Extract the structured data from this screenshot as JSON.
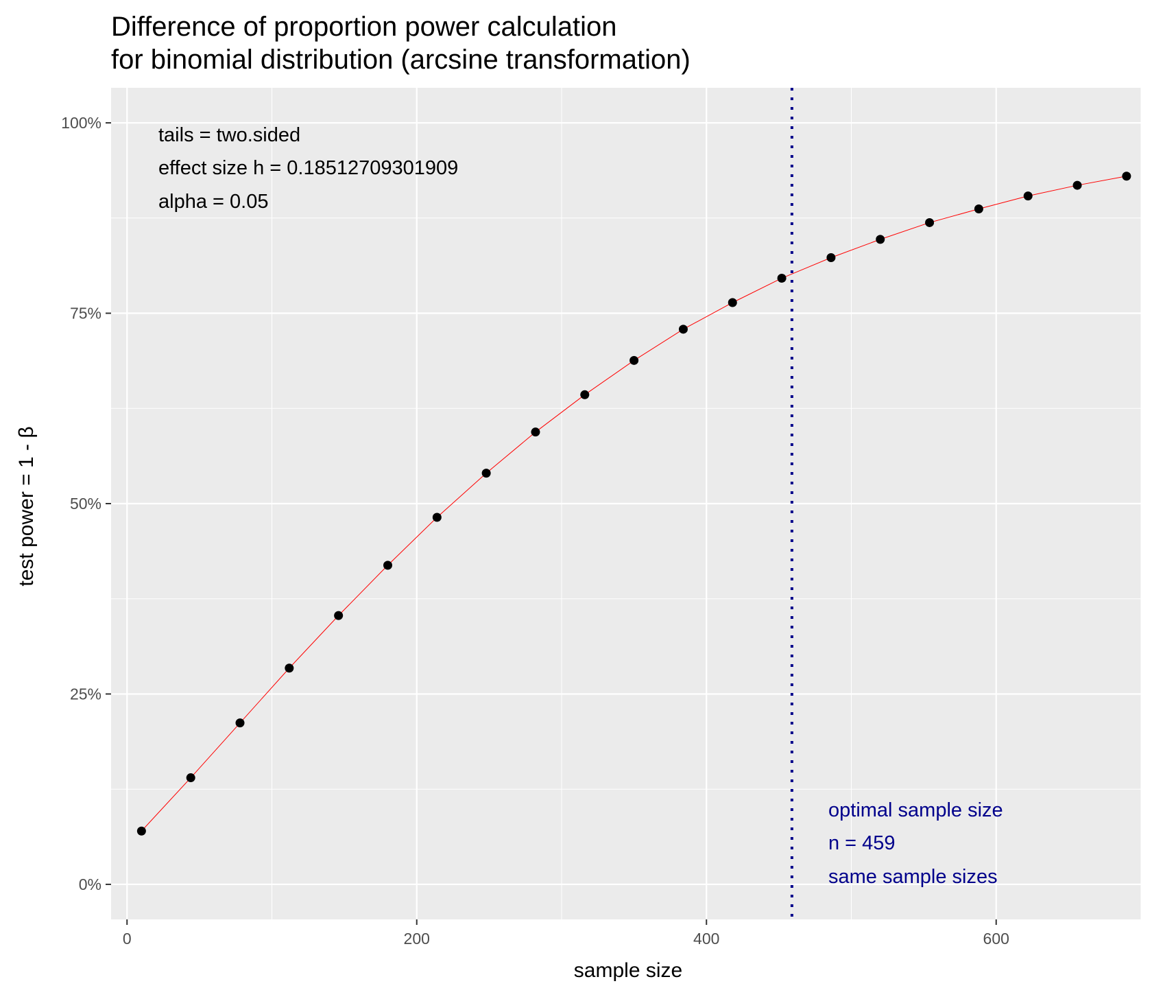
{
  "chart_data": {
    "type": "scatter",
    "title_lines": [
      "Difference of proportion power calculation",
      "for binomial distribution (arcsine transformation)"
    ],
    "xlabel": "sample size",
    "ylabel": "test power = 1 - β",
    "xlim": [
      -11,
      700
    ],
    "ylim": [
      -0.046,
      1.046
    ],
    "x_ticks": [
      0,
      200,
      400,
      600
    ],
    "x_tick_labels": [
      "0",
      "200",
      "400",
      "600"
    ],
    "x_minor_ticks": [
      100,
      300,
      500,
      700
    ],
    "y_ticks": [
      0,
      0.25,
      0.5,
      0.75,
      1.0
    ],
    "y_tick_labels": [
      "0%",
      "25%",
      "50%",
      "75%",
      "100%"
    ],
    "y_minor_ticks": [
      0.125,
      0.375,
      0.625,
      0.875
    ],
    "series": [
      {
        "x": [
          10,
          44,
          78,
          112,
          146,
          180,
          214,
          248,
          282,
          316,
          350,
          384,
          418,
          452,
          486,
          520,
          554,
          588,
          622,
          656,
          690
        ],
        "y": [
          0.07,
          0.14,
          0.212,
          0.284,
          0.353,
          0.419,
          0.482,
          0.54,
          0.594,
          0.643,
          0.688,
          0.729,
          0.764,
          0.796,
          0.823,
          0.847,
          0.869,
          0.887,
          0.904,
          0.918,
          0.93
        ]
      }
    ],
    "line_color": "#ff0000",
    "point_color": "#000000",
    "vline": {
      "x": 459,
      "color": "#00008b",
      "style": "dotted"
    },
    "annotations_top_left": [
      "tails = two.sided",
      "effect size h = 0.18512709301909",
      "alpha = 0.05"
    ],
    "annotations_bottom_right": [
      "optimal sample size",
      "n = 459",
      "same sample sizes"
    ],
    "colors": {
      "panel_background": "#ebebeb",
      "grid": "#ffffff",
      "annotation_blue": "#00008b"
    },
    "grid": true,
    "legend": "none"
  }
}
